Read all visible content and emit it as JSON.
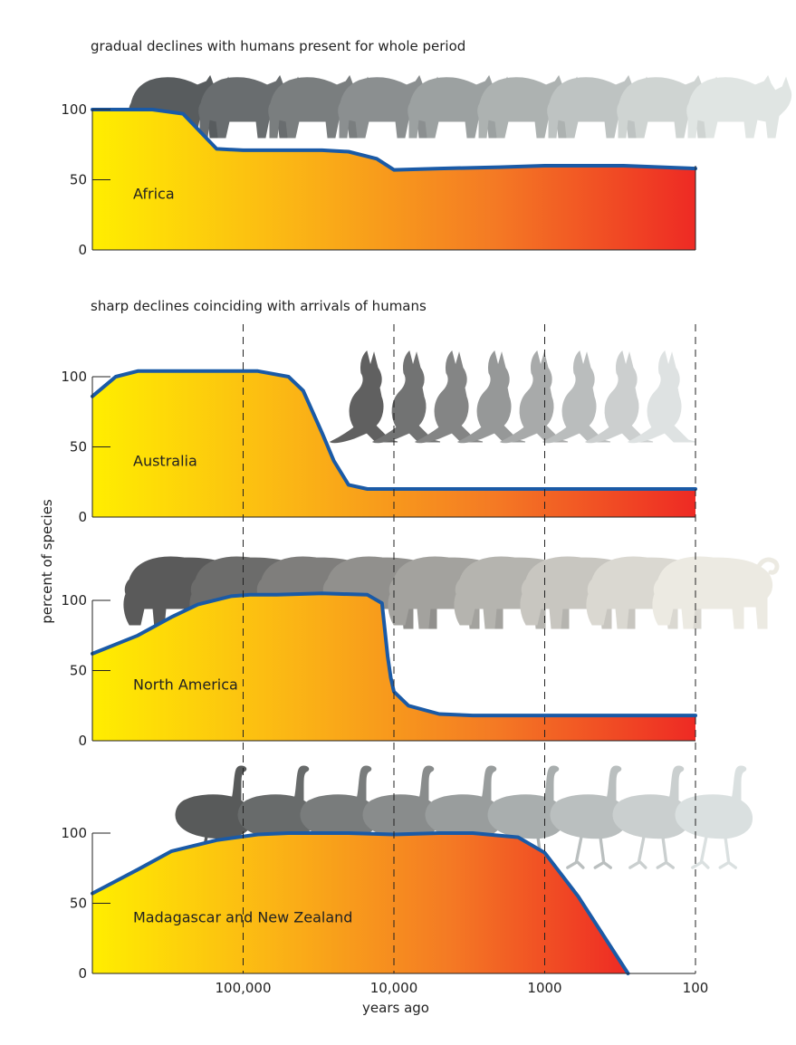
{
  "chart_data": {
    "type": "area",
    "x_scale": "log",
    "x_reversed": true,
    "xlabel": "years ago",
    "ylabel": "percent of species",
    "x_ticks": [
      {
        "value": 100000,
        "label": "100,000"
      },
      {
        "value": 10000,
        "label": "10,000"
      },
      {
        "value": 1000,
        "label": "1000"
      },
      {
        "value": 100,
        "label": "100"
      }
    ],
    "y_ticks": [
      {
        "value": 100,
        "label": "100"
      },
      {
        "value": 50,
        "label": "50"
      },
      {
        "value": 0,
        "label": "0"
      }
    ],
    "xlim": [
      1000000,
      100
    ],
    "ylim": [
      0,
      100
    ],
    "gradient_colors": [
      "#ffee00",
      "#fbb515",
      "#f47a24",
      "#ee2a24"
    ],
    "line_color": "#1a5aa6",
    "panel_titles": [
      "gradual declines with humans present for whole period",
      "sharp declines coinciding with arrivals of humans"
    ],
    "panels": [
      {
        "name": "Africa",
        "silhouette": "rhino-icon",
        "dashed_gridlines": false,
        "x": [
          1000000,
          600000,
          400000,
          250000,
          150000,
          100000,
          60000,
          30000,
          20000,
          13000,
          10000,
          5000,
          2000,
          1000,
          500,
          300,
          100
        ],
        "y": [
          100,
          100,
          100,
          97,
          72,
          71,
          71,
          71,
          70,
          65,
          57,
          58,
          59,
          60,
          60,
          60,
          58
        ]
      },
      {
        "name": "Australia",
        "silhouette": "kangaroo-icon",
        "dashed_gridlines": true,
        "x": [
          1000000,
          700000,
          500000,
          300000,
          150000,
          80000,
          50000,
          40000,
          30000,
          25000,
          20000,
          15000,
          10000,
          3000,
          1000,
          500,
          100
        ],
        "y": [
          86,
          100,
          104,
          104,
          104,
          104,
          100,
          90,
          60,
          40,
          23,
          20,
          20,
          20,
          20,
          20,
          20
        ]
      },
      {
        "name": "North America",
        "silhouette": "mastodon-icon",
        "dashed_gridlines": true,
        "x": [
          1000000,
          500000,
          300000,
          200000,
          120000,
          90000,
          60000,
          30000,
          15000,
          12000,
          11000,
          10500,
          10000,
          8000,
          5000,
          3000,
          1000,
          100
        ],
        "y": [
          62,
          75,
          88,
          97,
          103,
          104,
          104,
          105,
          104,
          98,
          60,
          45,
          35,
          25,
          19,
          18,
          18,
          18
        ]
      },
      {
        "name": "Madagascar and New Zealand",
        "silhouette": "moa-icon",
        "dashed_gridlines": true,
        "x": [
          1000000,
          500000,
          300000,
          150000,
          80000,
          50000,
          20000,
          10000,
          5000,
          3000,
          1500,
          1000,
          600,
          280
        ],
        "y": [
          57,
          74,
          87,
          95,
          99,
          100,
          100,
          99,
          100,
          100,
          97,
          86,
          55,
          0
        ]
      }
    ]
  }
}
